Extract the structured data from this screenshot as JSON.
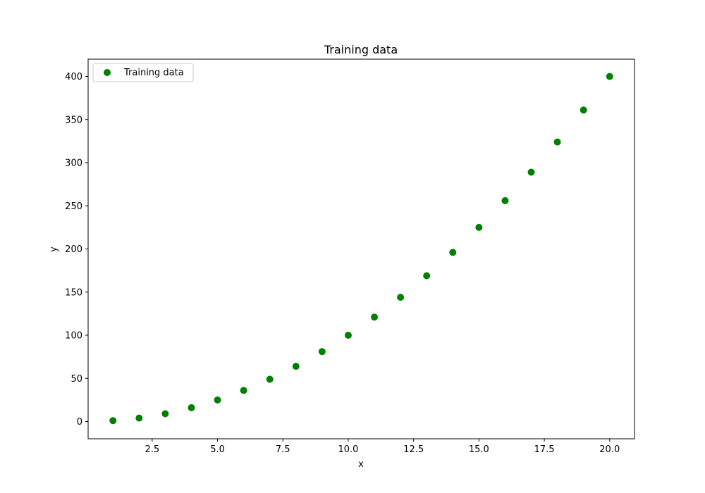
{
  "chart_data": {
    "type": "scatter",
    "title": "Training data",
    "xlabel": "x",
    "ylabel": "y",
    "xlim": [
      0.05,
      20.95
    ],
    "ylim": [
      -20,
      420
    ],
    "x_ticks": [
      2.5,
      5.0,
      7.5,
      10.0,
      12.5,
      15.0,
      17.5,
      20.0
    ],
    "x_tick_labels": [
      "2.5",
      "5.0",
      "7.5",
      "10.0",
      "12.5",
      "15.0",
      "17.5",
      "20.0"
    ],
    "y_ticks": [
      0,
      50,
      100,
      150,
      200,
      250,
      300,
      350,
      400
    ],
    "y_tick_labels": [
      "0",
      "50",
      "100",
      "150",
      "200",
      "250",
      "300",
      "350",
      "400"
    ],
    "grid": false,
    "legend": {
      "position": "top-left"
    },
    "series": [
      {
        "name": "Training data",
        "color": "#008000",
        "marker": "circle",
        "x": [
          1,
          2,
          3,
          4,
          5,
          6,
          7,
          8,
          9,
          10,
          11,
          12,
          13,
          14,
          15,
          16,
          17,
          18,
          19,
          20
        ],
        "y": [
          1,
          4,
          9,
          16,
          25,
          36,
          49,
          64,
          81,
          100,
          121,
          144,
          169,
          196,
          225,
          256,
          289,
          324,
          361,
          400
        ]
      }
    ]
  }
}
